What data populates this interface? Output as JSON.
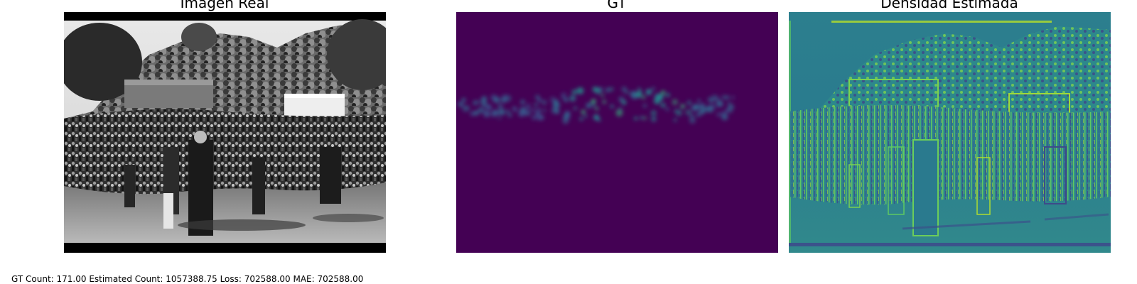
{
  "panels": {
    "real": {
      "title": "Imagen Real"
    },
    "gt": {
      "title": "GT"
    },
    "estimated": {
      "title": "Densidad Estimada"
    }
  },
  "metrics": {
    "text": "GT Count: 171.00     Estimated Count: 1057388.75     Loss: 702588.00     MAE: 702588.00"
  },
  "colors": {
    "viridis_low": "#440154",
    "viridis_mid": "#21918c",
    "viridis_high": "#fde725"
  }
}
